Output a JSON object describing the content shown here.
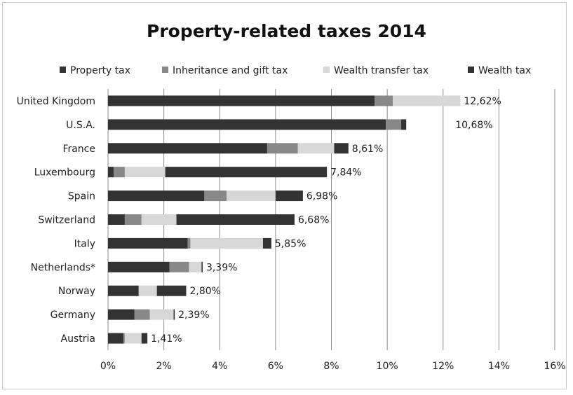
{
  "chart_data": {
    "type": "bar",
    "orientation": "horizontal",
    "stacked": true,
    "title": "Property-related taxes 2014",
    "categories": [
      "United Kingdom",
      "U.S.A.",
      "France",
      "Luxembourg",
      "Spain",
      "Switzerland",
      "Italy",
      "Netherlands*",
      "Norway",
      "Germany",
      "Austria"
    ],
    "series": [
      {
        "name": "Property tax",
        "color": "#333333",
        "values": [
          9.55,
          9.95,
          5.7,
          0.2,
          3.45,
          0.6,
          2.85,
          2.2,
          1.1,
          0.95,
          0.55
        ]
      },
      {
        "name": "Inheritance and gift tax",
        "color": "#888888",
        "values": [
          0.65,
          0.55,
          1.1,
          0.4,
          0.8,
          0.6,
          0.1,
          0.7,
          0.0,
          0.55,
          0.05
        ]
      },
      {
        "name": "Wealth transfer tax",
        "color": "#d7d7d7",
        "values": [
          2.42,
          0.0,
          1.3,
          1.45,
          1.75,
          1.25,
          2.6,
          0.45,
          0.65,
          0.85,
          0.6
        ]
      },
      {
        "name": "Wealth tax",
        "color": "#333333",
        "values": [
          0.0,
          0.18,
          0.51,
          5.79,
          0.98,
          4.23,
          0.3,
          0.04,
          1.05,
          0.04,
          0.21
        ]
      }
    ],
    "data_labels": [
      "12,62%",
      "10,68%",
      "8,61%",
      "7,84%",
      "6,98%",
      "6,68%",
      "5,85%",
      "3,39%",
      "2,80%",
      "2,39%",
      "1,41%"
    ],
    "xlim": [
      0,
      16
    ],
    "xticks": [
      0,
      2,
      4,
      6,
      8,
      10,
      12,
      14,
      16
    ],
    "xtick_labels": [
      "0%",
      "2%",
      "4%",
      "6%",
      "8%",
      "10%",
      "12%",
      "14%",
      "16%"
    ],
    "grid": "vertical",
    "legend_position": "top"
  }
}
